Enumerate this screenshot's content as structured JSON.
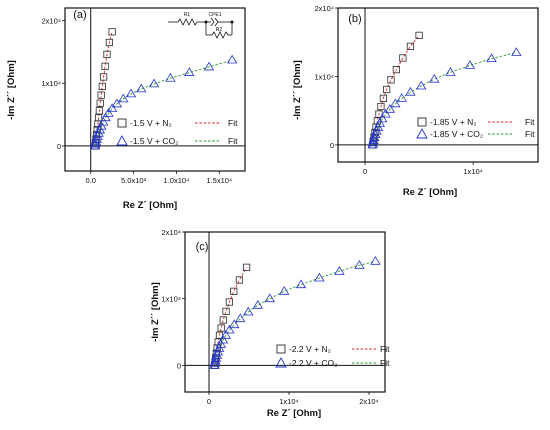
{
  "chart_data": [
    {
      "type": "scatter",
      "panel_label": "(a)",
      "xlabel": "Re Z´ [Ohm]",
      "ylabel": "-Im Z´´ [Ohm]",
      "xlim": [
        -3000,
        18000
      ],
      "ylim": [
        -4000,
        22000
      ],
      "x_tick_labels": [
        "0.0",
        "5.0x10³",
        "1.0x10⁴",
        "1.5x10⁴"
      ],
      "x_ticks": [
        0,
        5000,
        10000,
        15000
      ],
      "y_tick_labels": [
        "0",
        "1x10⁴",
        "2x10⁴"
      ],
      "y_ticks": [
        0,
        10000,
        20000
      ],
      "circuit": {
        "r1": "R1",
        "cpe": "CPE1",
        "r2": "R2"
      },
      "series": [
        {
          "name": "-1.5 V + N₂",
          "fit_label": "Fit",
          "marker": "square",
          "color": "#2b2b2b",
          "fit_color": "#d42020",
          "x": [
            500,
            560,
            620,
            690,
            760,
            840,
            920,
            1010,
            1110,
            1220,
            1350,
            1500,
            1680,
            1900,
            2180,
            2500
          ],
          "y": [
            0,
            500,
            1100,
            1800,
            2600,
            3500,
            4500,
            5600,
            6800,
            8100,
            9500,
            11000,
            12700,
            14600,
            16500,
            18200
          ]
        },
        {
          "name": "-1.5 V + CO₂",
          "fit_label": "Fit",
          "marker": "triangle",
          "color": "#2233cc",
          "fit_color": "#2a9a2a",
          "x": [
            500,
            550,
            620,
            700,
            800,
            920,
            1060,
            1240,
            1460,
            1730,
            2070,
            2500,
            3050,
            3800,
            4700,
            5900,
            7400,
            9300,
            11500,
            13800,
            16500
          ],
          "y": [
            0,
            300,
            650,
            1050,
            1500,
            2000,
            2550,
            3150,
            3800,
            4500,
            5200,
            5950,
            6700,
            7500,
            8300,
            9100,
            9900,
            10800,
            11700,
            12600,
            13700
          ]
        }
      ]
    },
    {
      "type": "scatter",
      "panel_label": "(b)",
      "xlabel": "Re Z´ [Ohm]",
      "ylabel": "-Im Z´´ [Ohm]",
      "xlim": [
        -2500,
        16000
      ],
      "ylim": [
        -2500,
        20000
      ],
      "x_tick_labels": [
        "0",
        "1x10⁴"
      ],
      "x_ticks": [
        0,
        10000
      ],
      "y_tick_labels": [
        "0",
        "1x10⁴",
        "2x10⁴"
      ],
      "y_ticks": [
        0,
        10000,
        20000
      ],
      "series": [
        {
          "name": "-1.85 V + N₂",
          "fit_label": "Fit",
          "marker": "square",
          "color": "#2b2b2b",
          "fit_color": "#d42020",
          "x": [
            700,
            760,
            830,
            920,
            1020,
            1140,
            1290,
            1470,
            1700,
            2000,
            2400,
            2900,
            3500,
            4200,
            5000
          ],
          "y": [
            0,
            500,
            1100,
            1800,
            2600,
            3500,
            4500,
            5600,
            6800,
            8100,
            9500,
            11000,
            12700,
            14400,
            16000
          ]
        },
        {
          "name": "-1.85 V + CO₂",
          "fit_label": "Fit",
          "marker": "triangle",
          "color": "#2233cc",
          "fit_color": "#2a9a2a",
          "x": [
            700,
            740,
            790,
            860,
            950,
            1060,
            1200,
            1370,
            1600,
            1900,
            2300,
            2800,
            3400,
            4200,
            5200,
            6400,
            7900,
            9700,
            11700,
            14000
          ],
          "y": [
            0,
            300,
            650,
            1050,
            1500,
            2000,
            2550,
            3150,
            3800,
            4500,
            5200,
            6000,
            6800,
            7700,
            8600,
            9600,
            10600,
            11600,
            12600,
            13500
          ]
        }
      ]
    },
    {
      "type": "scatter",
      "panel_label": "(c)",
      "xlabel": "Re Z´ [Ohm]",
      "ylabel": "-Im Z´´ [Ohm]",
      "xlim": [
        -3000,
        22000
      ],
      "ylim": [
        -4000,
        20000
      ],
      "x_tick_labels": [
        "0",
        "1x10⁴",
        "2x10⁴"
      ],
      "x_ticks": [
        0,
        10000,
        20000
      ],
      "y_tick_labels": [
        "0",
        "1x10⁴",
        "2x10⁴"
      ],
      "y_ticks": [
        0,
        10000,
        20000
      ],
      "series": [
        {
          "name": "-2.2 V + N₂",
          "fit_label": "Fit",
          "marker": "square",
          "color": "#2b2b2b",
          "fit_color": "#d42020",
          "x": [
            700,
            760,
            830,
            920,
            1020,
            1150,
            1310,
            1520,
            1790,
            2130,
            2550,
            3100,
            3800,
            4700
          ],
          "y": [
            0,
            500,
            1100,
            1800,
            2600,
            3500,
            4500,
            5600,
            6800,
            8100,
            9500,
            11100,
            12800,
            14700
          ]
        },
        {
          "name": "-2.2 V + CO₂",
          "fit_label": "Fit",
          "marker": "triangle",
          "color": "#2233cc",
          "fit_color": "#2a9a2a",
          "x": [
            700,
            740,
            800,
            880,
            980,
            1110,
            1270,
            1480,
            1750,
            2100,
            2550,
            3150,
            3900,
            4900,
            6100,
            7600,
            9400,
            11500,
            13800,
            16300,
            18800,
            20800
          ],
          "y": [
            0,
            300,
            650,
            1050,
            1500,
            2000,
            2550,
            3150,
            3800,
            4500,
            5300,
            6100,
            7000,
            8000,
            9000,
            10000,
            11100,
            12100,
            13100,
            14100,
            15000,
            15600
          ]
        }
      ]
    }
  ]
}
